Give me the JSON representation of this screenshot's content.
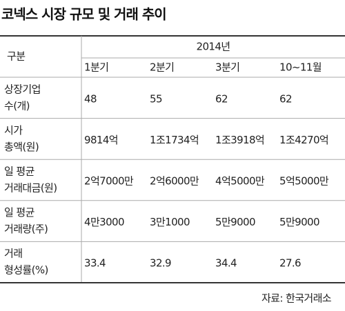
{
  "title": "코넥스 시장 규모 및 거래 추이",
  "table": {
    "corner": "구분",
    "group": "2014년",
    "columns": [
      "1분기",
      "2분기",
      "3분기",
      "10~11월"
    ],
    "rows": [
      {
        "label": [
          "상장기업",
          "수(개)"
        ],
        "cells": [
          "48",
          "55",
          "62",
          "62"
        ]
      },
      {
        "label": [
          "시가",
          "총액(원)"
        ],
        "cells": [
          "9814억",
          "1조1734억",
          "1조3918억",
          "1조4270억"
        ]
      },
      {
        "label": [
          "일 평균",
          "거래대금(원)"
        ],
        "cells": [
          "2억7000만",
          "2억6000만",
          "4억5000만",
          "5억5000만"
        ]
      },
      {
        "label": [
          "일 평균",
          "거래량(주)"
        ],
        "cells": [
          "4만3000",
          "3만1000",
          "5만9000",
          "5만9000"
        ]
      },
      {
        "label": [
          "거래",
          "형성률(%)"
        ],
        "cells": [
          "33.4",
          "32.9",
          "34.4",
          "27.6"
        ]
      }
    ]
  },
  "source": "자료: 한국거래소"
}
